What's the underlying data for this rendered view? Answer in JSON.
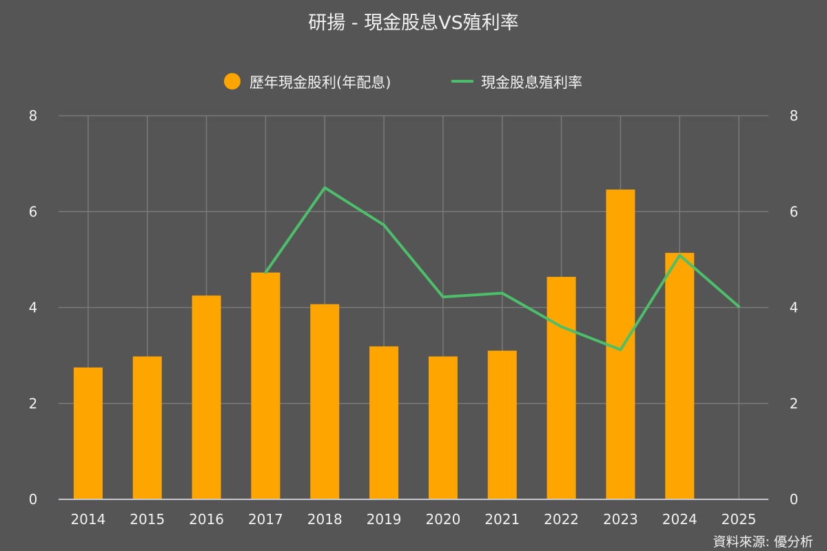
{
  "colors": {
    "background": "#555555",
    "bar": "#FFA500",
    "line": "#4CBF6B",
    "grid": "#7a7a7a",
    "axis_line": "#c8c8d0",
    "text": "#f2f2f2"
  },
  "chart_data": {
    "type": "bar",
    "title": "研揚 - 現金股息VS殖利率",
    "categories": [
      "2014",
      "2015",
      "2016",
      "2017",
      "2018",
      "2019",
      "2020",
      "2021",
      "2022",
      "2023",
      "2024",
      "2025"
    ],
    "series": [
      {
        "name": "歷年現金股利(年配息)",
        "type": "bar",
        "axis": "left",
        "values": [
          2.75,
          2.98,
          4.25,
          4.73,
          4.07,
          3.19,
          2.98,
          3.1,
          4.64,
          6.46,
          5.14,
          null
        ]
      },
      {
        "name": "現金股息殖利率",
        "type": "line",
        "axis": "right",
        "values": [
          null,
          null,
          null,
          4.73,
          6.5,
          5.72,
          4.22,
          4.3,
          3.6,
          3.12,
          5.09,
          4.02
        ]
      }
    ],
    "ylim_left": [
      0,
      8
    ],
    "ylim_right": [
      0,
      8
    ],
    "yticks": [
      "0",
      "2",
      "4",
      "6",
      "8"
    ],
    "grid": true,
    "legend_position": "top-center",
    "source_note": "資料來源: 優分析"
  }
}
